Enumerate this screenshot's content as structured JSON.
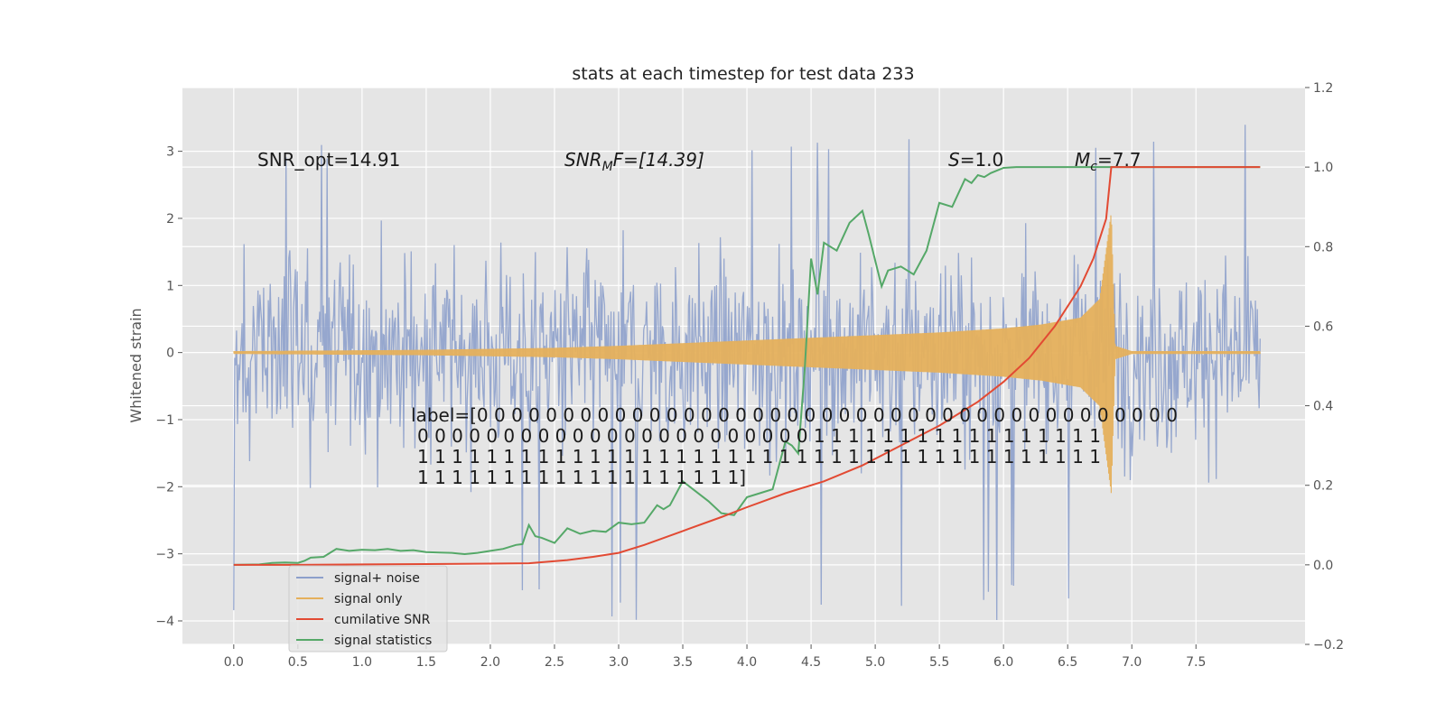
{
  "chart_data": {
    "type": "line",
    "title": "stats at each timestep for test data 233",
    "xlabel": "",
    "ylabel": "Whitened strain",
    "xlim": [
      -0.4,
      8.35
    ],
    "ylim": [
      -4.35,
      3.95
    ],
    "y2lim": [
      -0.2,
      1.2
    ],
    "grid": true,
    "x_ticks": [
      "0.0",
      "0.5",
      "1.0",
      "1.5",
      "2.0",
      "2.5",
      "3.0",
      "3.5",
      "4.0",
      "4.5",
      "5.0",
      "5.5",
      "6.0",
      "6.5",
      "7.0",
      "7.5"
    ],
    "y_ticks": [
      "3",
      "2",
      "1",
      "0",
      "−1",
      "−2",
      "−3",
      "−4"
    ],
    "y2_ticks": [
      "1.2",
      "1.0",
      "0.8",
      "0.6",
      "0.4",
      "0.2",
      "0.0",
      "−0.2"
    ],
    "annotations": {
      "snr_opt": "SNR_opt=14.91",
      "snr_mf_main": "SNR",
      "snr_mf_sub": "M",
      "snr_mf_rest": "F=[14.39]",
      "s_main": "S",
      "s_rest": "=1.0",
      "mc_main": "M",
      "mc_sub": "c",
      "mc_rest": "=7.7",
      "label_lines": [
        "label=[0 0 0 0 0 0 0 0 0 0 0 0 0 0 0 0 0 0 0 0 0 0 0 0 0 0 0 0 0 0 0 0 0 0 0 0 0 0 0 0 0",
        "0 0 0 0 0 0 0 0 0 0 0 0 0 0 0 0 0 0 0 0 0 0 0 1 1 1 1 1 1 1 1 1 1 1 1 1 1 1 1 1",
        "1 1 1 1 1 1 1 1 1 1 1 1 1 1 1 1 1 1 1 1 1 1 1 1 1 1 1 1 1 1 1 1 1 1 1 1 1 1 1 1",
        "1 1 1 1 1 1 1 1 1 1 1 1 1 1 1 1 1 1 1]"
      ]
    },
    "legend": {
      "position": "lower-left",
      "entries": [
        "signal+ noise",
        "signal only",
        "cumilative SNR",
        "signal statistics"
      ]
    },
    "series": [
      {
        "name": "signal+ noise",
        "axis": "left",
        "color": "#8da0cb",
        "kind": "noise",
        "x_range": [
          0.0,
          8.0
        ],
        "samples": 1100,
        "typical_amplitude": 2.2,
        "peaks_max": 3.6,
        "peaks_min": -4.0
      },
      {
        "name": "signal only",
        "axis": "left",
        "color": "#e5b05c",
        "kind": "chirp",
        "x_range": [
          0.0,
          8.0
        ],
        "merger_time": 6.84,
        "envelope_x": [
          0.0,
          1.5,
          2.5,
          3.0,
          3.5,
          4.0,
          4.5,
          5.0,
          5.5,
          6.0,
          6.3,
          6.6,
          6.75,
          6.84,
          6.87,
          7.0,
          8.0
        ],
        "envelope_y": [
          0.02,
          0.04,
          0.07,
          0.1,
          0.14,
          0.18,
          0.22,
          0.26,
          0.3,
          0.36,
          0.42,
          0.52,
          0.8,
          2.1,
          0.1,
          0.02,
          0.02
        ]
      },
      {
        "name": "cumilative SNR",
        "axis": "right",
        "color": "#e24a33",
        "x": [
          0.0,
          0.5,
          1.0,
          1.5,
          2.0,
          2.3,
          2.6,
          2.8,
          3.0,
          3.2,
          3.5,
          3.8,
          4.0,
          4.3,
          4.6,
          4.9,
          5.2,
          5.5,
          5.8,
          6.0,
          6.2,
          6.4,
          6.6,
          6.7,
          6.8,
          6.84,
          7.0,
          8.0
        ],
        "y": [
          0.0,
          0.0,
          0.001,
          0.002,
          0.003,
          0.004,
          0.012,
          0.02,
          0.03,
          0.05,
          0.085,
          0.12,
          0.145,
          0.18,
          0.21,
          0.25,
          0.3,
          0.35,
          0.41,
          0.46,
          0.52,
          0.6,
          0.7,
          0.77,
          0.87,
          1.0,
          1.0,
          1.0
        ]
      },
      {
        "name": "signal statistics",
        "axis": "right",
        "color": "#55a868",
        "x": [
          0.0,
          0.2,
          0.3,
          0.4,
          0.5,
          0.55,
          0.6,
          0.7,
          0.8,
          0.9,
          1.0,
          1.1,
          1.2,
          1.3,
          1.4,
          1.5,
          1.6,
          1.7,
          1.8,
          1.9,
          2.0,
          2.1,
          2.2,
          2.25,
          2.3,
          2.35,
          2.4,
          2.5,
          2.6,
          2.7,
          2.8,
          2.9,
          3.0,
          3.1,
          3.2,
          3.3,
          3.35,
          3.4,
          3.5,
          3.6,
          3.7,
          3.8,
          3.9,
          4.0,
          4.1,
          4.2,
          4.3,
          4.35,
          4.4,
          4.45,
          4.5,
          4.55,
          4.6,
          4.7,
          4.8,
          4.9,
          4.95,
          5.05,
          5.1,
          5.2,
          5.3,
          5.35,
          5.4,
          5.5,
          5.6,
          5.7,
          5.75,
          5.8,
          5.85,
          5.9,
          6.0,
          6.1,
          6.2,
          6.5,
          7.0,
          8.0
        ],
        "y": [
          0.0,
          0.001,
          0.005,
          0.006,
          0.005,
          0.01,
          0.018,
          0.02,
          0.04,
          0.035,
          0.038,
          0.037,
          0.04,
          0.035,
          0.037,
          0.032,
          0.031,
          0.03,
          0.027,
          0.03,
          0.035,
          0.04,
          0.05,
          0.052,
          0.1,
          0.072,
          0.068,
          0.055,
          0.092,
          0.078,
          0.086,
          0.083,
          0.106,
          0.102,
          0.106,
          0.15,
          0.14,
          0.15,
          0.21,
          0.185,
          0.16,
          0.13,
          0.125,
          0.17,
          0.18,
          0.19,
          0.31,
          0.3,
          0.28,
          0.49,
          0.77,
          0.68,
          0.81,
          0.79,
          0.86,
          0.89,
          0.83,
          0.7,
          0.74,
          0.75,
          0.73,
          0.76,
          0.79,
          0.91,
          0.9,
          0.97,
          0.96,
          0.98,
          0.975,
          0.985,
          0.998,
          1.0,
          1.0,
          1.0,
          1.0,
          1.0
        ]
      }
    ]
  }
}
